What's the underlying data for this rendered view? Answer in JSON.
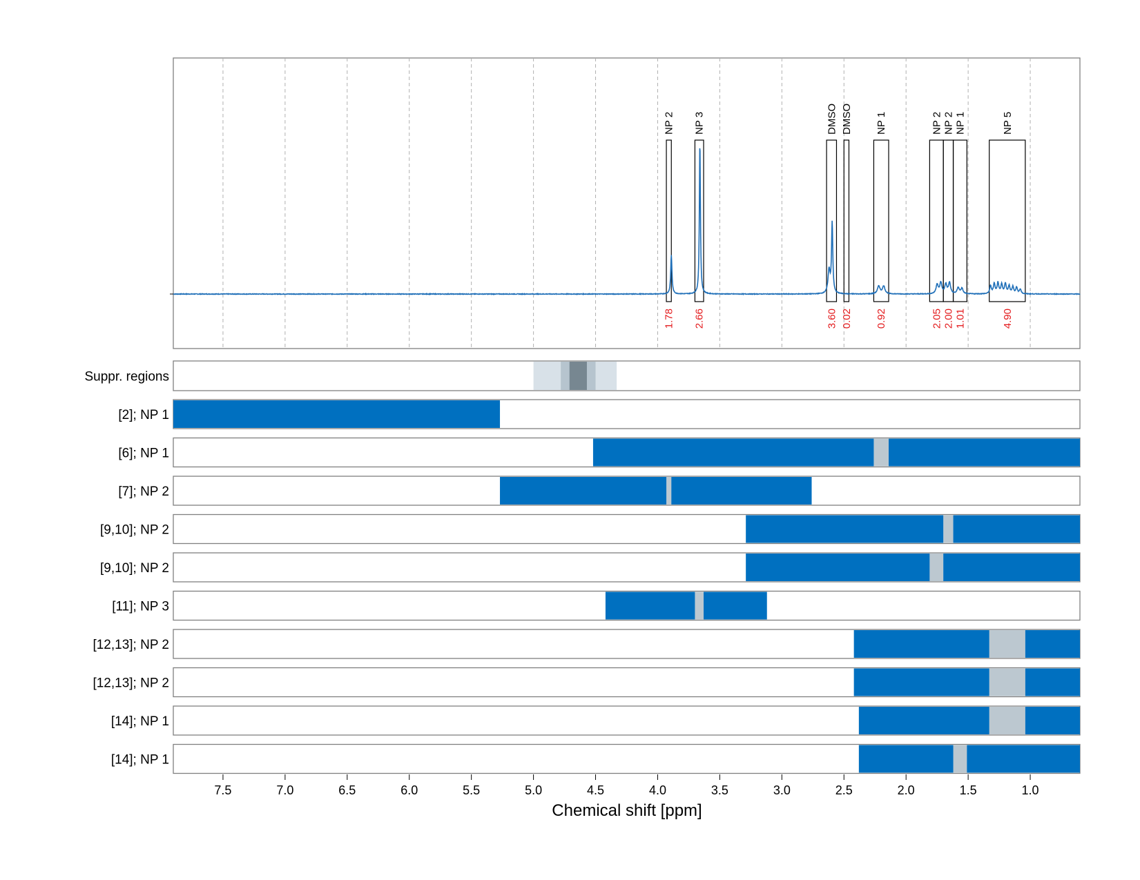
{
  "chart_data": {
    "type": "nmr-spectrum-with-region-bars",
    "xlabel": "Chemical shift [ppm]",
    "xlim": [
      7.9,
      0.6
    ],
    "x_ticks": [
      7.5,
      7.0,
      6.5,
      6.0,
      5.5,
      5.0,
      4.5,
      4.0,
      3.5,
      3.0,
      2.5,
      2.0,
      1.5,
      1.0
    ],
    "x_tick_labels": [
      "7.5",
      "7.0",
      "6.5",
      "6.0",
      "5.5",
      "5.0",
      "4.5",
      "4.0",
      "3.5",
      "3.0",
      "2.5",
      "2.0",
      "1.5",
      "1.0"
    ],
    "grid": true,
    "colors": {
      "spectrum": "#1f6fb8",
      "bar": "#0070c0",
      "gap": "#bcc8d0",
      "integral_label": "#e31a1c",
      "suppr_light": "#d8e1e8",
      "suppr_mid": "#b6c4ce",
      "suppr_dark": "#778791"
    },
    "spectrum": {
      "baseline": 0,
      "y_max": 1.0,
      "peaks": [
        {
          "center": 3.89,
          "height": 0.25,
          "width": 0.006
        },
        {
          "center": 3.66,
          "height": 0.98,
          "width": 0.005
        },
        {
          "center": 2.595,
          "height": 0.45,
          "width": 0.006
        },
        {
          "center": 2.62,
          "height": 0.15,
          "width": 0.01
        },
        {
          "center": 2.22,
          "height": 0.05,
          "width": 0.012
        },
        {
          "center": 2.18,
          "height": 0.05,
          "width": 0.012
        },
        {
          "center": 1.75,
          "height": 0.06,
          "width": 0.01
        },
        {
          "center": 1.72,
          "height": 0.07,
          "width": 0.01
        },
        {
          "center": 1.68,
          "height": 0.06,
          "width": 0.01
        },
        {
          "center": 1.65,
          "height": 0.07,
          "width": 0.01
        },
        {
          "center": 1.58,
          "height": 0.04,
          "width": 0.01
        },
        {
          "center": 1.55,
          "height": 0.035,
          "width": 0.01
        },
        {
          "center": 1.32,
          "height": 0.05,
          "width": 0.008
        },
        {
          "center": 1.29,
          "height": 0.065,
          "width": 0.008
        },
        {
          "center": 1.26,
          "height": 0.07,
          "width": 0.008
        },
        {
          "center": 1.23,
          "height": 0.06,
          "width": 0.008
        },
        {
          "center": 1.2,
          "height": 0.065,
          "width": 0.008
        },
        {
          "center": 1.17,
          "height": 0.05,
          "width": 0.008
        },
        {
          "center": 1.14,
          "height": 0.045,
          "width": 0.008
        },
        {
          "center": 1.11,
          "height": 0.04,
          "width": 0.008
        },
        {
          "center": 1.08,
          "height": 0.03,
          "width": 0.008
        }
      ]
    },
    "integral_regions": [
      {
        "label": "NP 2",
        "from": 3.93,
        "to": 3.89,
        "value": "1.78"
      },
      {
        "label": "NP 3",
        "from": 3.7,
        "to": 3.63,
        "value": "2.66"
      },
      {
        "label": "DMSO",
        "from": 2.64,
        "to": 2.56,
        "value": "3.60"
      },
      {
        "label": "DMSO",
        "from": 2.5,
        "to": 2.46,
        "value": "0.02"
      },
      {
        "label": "NP 1",
        "from": 2.26,
        "to": 2.14,
        "value": "0.92"
      },
      {
        "label": "NP 2",
        "from": 1.81,
        "to": 1.7,
        "value": "2.05"
      },
      {
        "label": "NP 2",
        "from": 1.7,
        "to": 1.62,
        "value": "2.00"
      },
      {
        "label": "NP 1",
        "from": 1.62,
        "to": 1.51,
        "value": "1.01"
      },
      {
        "label": "NP 5",
        "from": 1.33,
        "to": 1.04,
        "value": "4.90"
      }
    ],
    "suppression": {
      "label": "Suppr. regions",
      "layers": [
        {
          "from": 5.0,
          "to": 4.33,
          "level": "light"
        },
        {
          "from": 4.78,
          "to": 4.5,
          "level": "mid"
        },
        {
          "from": 4.71,
          "to": 4.57,
          "level": "dark"
        }
      ]
    },
    "rows": [
      {
        "label": "[2]; NP 1",
        "segments": [
          [
            7.9,
            5.27
          ]
        ],
        "gaps": []
      },
      {
        "label": "[6]; NP 1",
        "segments": [
          [
            4.52,
            2.26
          ],
          [
            2.14,
            0.6
          ]
        ],
        "gaps": [
          [
            2.26,
            2.14
          ]
        ]
      },
      {
        "label": "[7]; NP 2",
        "segments": [
          [
            5.27,
            3.93
          ],
          [
            3.89,
            2.76
          ]
        ],
        "gaps": [
          [
            3.93,
            3.89
          ]
        ]
      },
      {
        "label": "[9,10]; NP 2",
        "segments": [
          [
            3.29,
            1.7
          ],
          [
            1.62,
            0.6
          ]
        ],
        "gaps": [
          [
            1.7,
            1.62
          ]
        ]
      },
      {
        "label": "[9,10]; NP 2",
        "segments": [
          [
            3.29,
            1.81
          ],
          [
            1.7,
            0.6
          ]
        ],
        "gaps": [
          [
            1.81,
            1.7
          ]
        ]
      },
      {
        "label": "[11]; NP 3",
        "segments": [
          [
            4.42,
            3.7
          ],
          [
            3.63,
            3.12
          ]
        ],
        "gaps": [
          [
            3.7,
            3.63
          ]
        ]
      },
      {
        "label": "[12,13]; NP 2",
        "segments": [
          [
            2.42,
            1.33
          ],
          [
            1.04,
            0.6
          ]
        ],
        "gaps": [
          [
            1.33,
            1.04
          ]
        ]
      },
      {
        "label": "[12,13]; NP 2",
        "segments": [
          [
            2.42,
            1.33
          ],
          [
            1.04,
            0.6
          ]
        ],
        "gaps": [
          [
            1.33,
            1.04
          ]
        ]
      },
      {
        "label": "[14]; NP 1",
        "segments": [
          [
            2.38,
            1.33
          ],
          [
            1.04,
            0.6
          ]
        ],
        "gaps": [
          [
            1.33,
            1.04
          ]
        ]
      },
      {
        "label": "[14]; NP 1",
        "segments": [
          [
            2.38,
            1.62
          ],
          [
            1.51,
            0.6
          ]
        ],
        "gaps": [
          [
            1.62,
            1.51
          ]
        ]
      }
    ]
  }
}
